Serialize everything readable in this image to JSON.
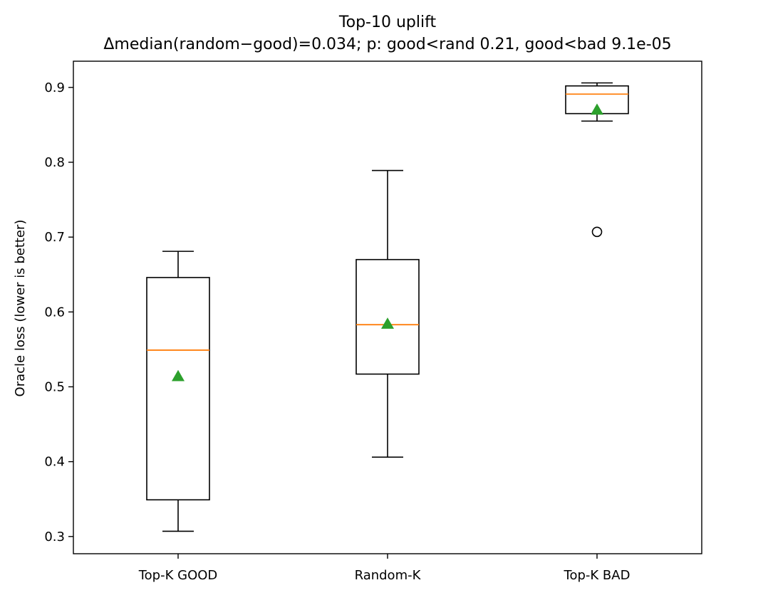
{
  "chart_data": {
    "type": "box",
    "title": "Top-10 uplift",
    "subtitle": "Δmedian(random−good)=0.034;  p: good<rand 0.21, good<bad 9.1e-05",
    "xlabel": "",
    "ylabel": "Oracle loss (lower is better)",
    "ylim": [
      0.277,
      0.935
    ],
    "yticks": [
      0.3,
      0.4,
      0.5,
      0.6,
      0.7,
      0.8,
      0.9
    ],
    "ytick_labels": [
      "0.3",
      "0.4",
      "0.5",
      "0.6",
      "0.7",
      "0.8",
      "0.9"
    ],
    "grid": false,
    "categories": [
      "Top-K GOOD",
      "Random-K",
      "Top-K BAD"
    ],
    "boxes": [
      {
        "label": "Top-K GOOD",
        "whisker_low": 0.307,
        "q1": 0.349,
        "median": 0.549,
        "q3": 0.646,
        "whisker_high": 0.681,
        "mean": 0.514,
        "outliers": []
      },
      {
        "label": "Random-K",
        "whisker_low": 0.406,
        "q1": 0.517,
        "median": 0.583,
        "q3": 0.67,
        "whisker_high": 0.789,
        "mean": 0.584,
        "outliers": []
      },
      {
        "label": "Top-K BAD",
        "whisker_low": 0.855,
        "q1": 0.865,
        "median": 0.891,
        "q3": 0.902,
        "whisker_high": 0.906,
        "mean": 0.87,
        "outliers": [
          0.707
        ]
      }
    ],
    "colors": {
      "box": "#000000",
      "median": "#ff7f0e",
      "mean": "#2ca02c",
      "outlier": "#000000"
    }
  }
}
